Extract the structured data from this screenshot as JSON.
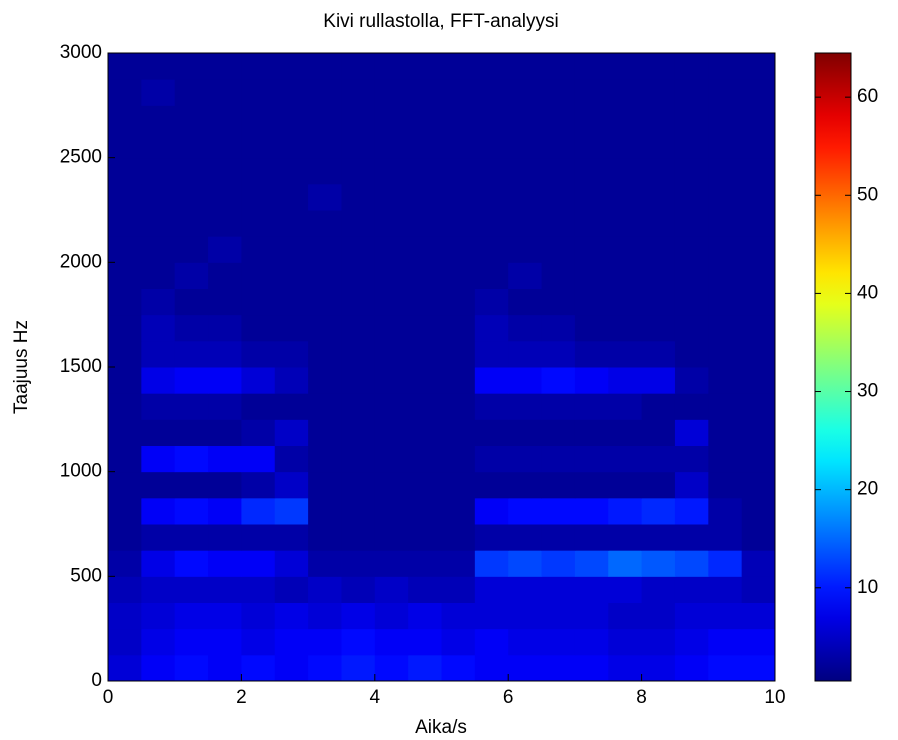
{
  "chart_data": {
    "type": "heatmap",
    "title": "Kivi rullastolla, FFT-analyysi",
    "x_label": "Aika/s",
    "y_label": "Taajuus Hz",
    "xlim": [
      0,
      10
    ],
    "xticks": [
      0,
      2,
      4,
      6,
      8,
      10
    ],
    "ylim": [
      0,
      3000
    ],
    "yticks": [
      0,
      500,
      1000,
      1500,
      2000,
      2500,
      3000
    ],
    "colormap": "jet",
    "clim": [
      0.5,
      64.5
    ],
    "cticks": [
      10,
      20,
      30,
      40,
      50,
      60
    ],
    "z": [
      [
        6,
        8,
        9,
        8,
        9,
        8,
        9,
        10,
        9,
        10,
        9,
        8,
        8,
        8,
        8,
        7,
        7,
        8,
        9,
        9
      ],
      [
        5,
        7,
        8,
        8,
        7,
        8,
        8,
        9,
        8,
        8,
        7,
        8,
        7,
        7,
        7,
        6,
        6,
        7,
        8,
        8
      ],
      [
        5,
        6,
        7,
        7,
        6,
        7,
        6,
        7,
        6,
        7,
        6,
        6,
        6,
        6,
        6,
        5,
        5,
        6,
        6,
        6
      ],
      [
        4,
        5,
        5,
        5,
        5,
        4,
        5,
        4,
        5,
        4,
        4,
        6,
        6,
        6,
        6,
        6,
        5,
        5,
        5,
        4
      ],
      [
        3,
        7,
        9,
        8,
        8,
        6,
        3,
        3,
        3,
        3,
        3,
        12,
        13,
        12,
        13,
        15,
        14,
        13,
        11,
        4
      ],
      [
        2,
        3,
        3,
        3,
        3,
        3,
        2,
        2,
        2,
        2,
        2,
        3,
        3,
        3,
        3,
        3,
        3,
        3,
        3,
        2
      ],
      [
        2,
        8,
        9,
        8,
        11,
        12,
        2,
        2,
        2,
        2,
        2,
        8,
        9,
        9,
        9,
        10,
        11,
        10,
        3,
        2
      ],
      [
        2,
        2,
        2,
        2,
        3,
        5,
        2,
        2,
        2,
        2,
        2,
        2,
        2,
        2,
        2,
        2,
        2,
        5,
        2,
        2
      ],
      [
        2,
        8,
        9,
        8,
        8,
        3,
        2,
        2,
        2,
        2,
        2,
        3,
        3,
        3,
        3,
        3,
        3,
        3,
        2,
        2
      ],
      [
        2,
        2,
        2,
        2,
        3,
        5,
        2,
        2,
        2,
        2,
        2,
        2,
        2,
        2,
        2,
        2,
        2,
        6,
        2,
        2
      ],
      [
        2,
        3,
        3,
        3,
        2,
        2,
        2,
        2,
        2,
        2,
        2,
        3,
        3,
        3,
        3,
        3,
        2,
        2,
        2,
        2
      ],
      [
        2,
        7,
        8,
        8,
        6,
        4,
        2,
        2,
        2,
        2,
        2,
        8,
        8,
        9,
        8,
        7,
        7,
        3,
        2,
        2
      ],
      [
        2,
        4,
        4,
        4,
        3,
        3,
        2,
        2,
        2,
        2,
        2,
        4,
        4,
        4,
        3,
        3,
        3,
        2,
        2,
        2
      ],
      [
        2,
        4,
        3,
        3,
        2,
        2,
        2,
        2,
        2,
        2,
        2,
        4,
        3,
        3,
        2,
        2,
        2,
        2,
        2,
        2
      ],
      [
        2,
        3,
        2,
        2,
        2,
        2,
        2,
        2,
        2,
        2,
        2,
        3,
        2,
        2,
        2,
        2,
        2,
        2,
        2,
        2
      ],
      [
        2,
        2,
        3,
        2,
        2,
        2,
        2,
        2,
        2,
        2,
        2,
        2,
        3,
        2,
        2,
        2,
        2,
        2,
        2,
        2
      ],
      [
        2,
        2,
        2,
        3,
        2,
        2,
        2,
        2,
        2,
        2,
        2,
        2,
        2,
        2,
        2,
        2,
        2,
        2,
        2,
        2
      ],
      [
        2,
        2,
        2,
        2,
        2,
        2,
        2,
        2,
        2,
        2,
        2,
        2,
        2,
        2,
        2,
        2,
        2,
        2,
        2,
        2
      ],
      [
        2,
        2,
        2,
        2,
        2,
        2,
        3,
        2,
        2,
        2,
        2,
        2,
        2,
        2,
        2,
        2,
        2,
        2,
        2,
        2
      ],
      [
        2,
        2,
        2,
        2,
        2,
        2,
        2,
        2,
        2,
        2,
        2,
        2,
        2,
        2,
        2,
        2,
        2,
        2,
        2,
        2
      ],
      [
        2,
        2,
        2,
        2,
        2,
        2,
        2,
        2,
        2,
        2,
        2,
        2,
        2,
        2,
        2,
        2,
        2,
        2,
        2,
        2
      ],
      [
        2,
        2,
        2,
        2,
        2,
        2,
        2,
        2,
        2,
        2,
        2,
        2,
        2,
        2,
        2,
        2,
        2,
        2,
        2,
        2
      ],
      [
        2,
        3,
        2,
        2,
        2,
        2,
        2,
        2,
        2,
        2,
        2,
        2,
        2,
        2,
        2,
        2,
        2,
        2,
        2,
        2
      ],
      [
        2,
        2,
        2,
        2,
        2,
        2,
        2,
        2,
        2,
        2,
        2,
        2,
        2,
        2,
        2,
        2,
        2,
        2,
        2,
        2
      ]
    ]
  }
}
